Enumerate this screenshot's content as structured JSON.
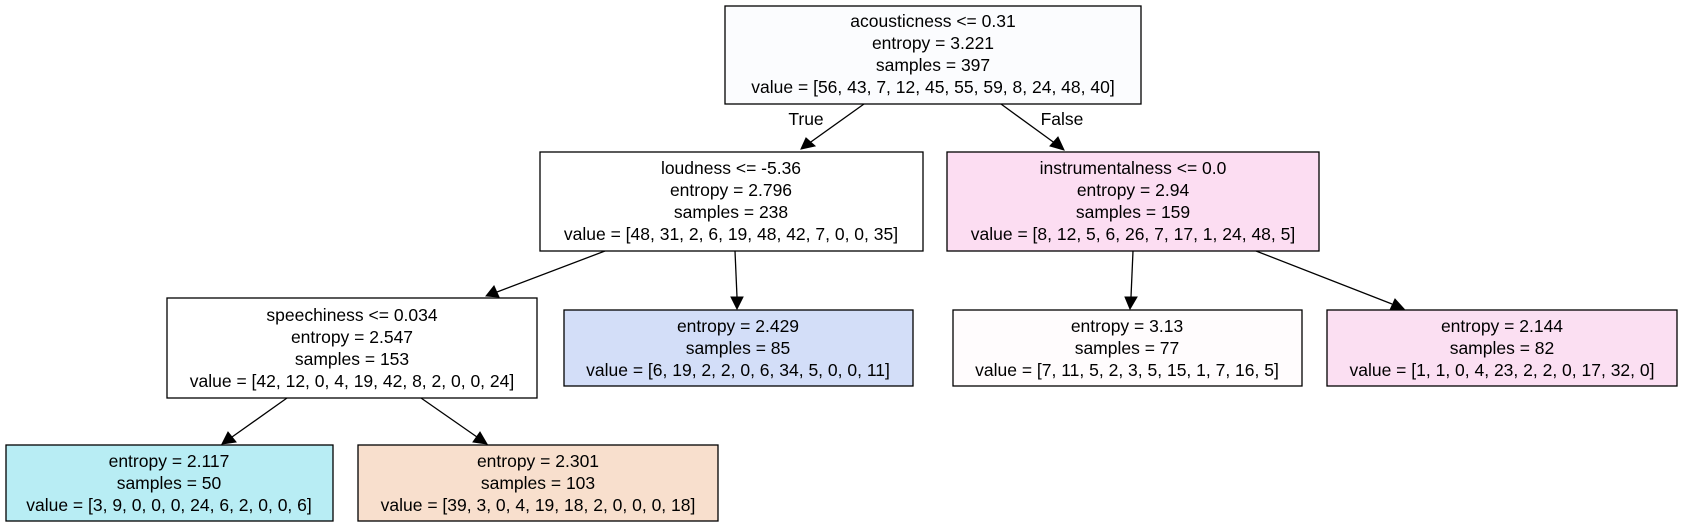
{
  "nodes": {
    "root": {
      "split": "acousticness <= 0.31",
      "entropy": "entropy = 3.221",
      "samples": "samples = 397",
      "value": "value = [56, 43, 7, 12, 45, 55, 59, 8, 24, 48, 40]",
      "fill": "#fbfcfe"
    },
    "loudness": {
      "split": "loudness <= -5.36",
      "entropy": "entropy = 2.796",
      "samples": "samples = 238",
      "value": "value = [48, 31, 2, 6, 19, 48, 42, 7, 0, 0, 35]",
      "fill": "#ffffff"
    },
    "instrumentalness": {
      "split": "instrumentalness <= 0.0",
      "entropy": "entropy = 2.94",
      "samples": "samples = 159",
      "value": "value = [8, 12, 5, 6, 26, 7, 17, 1, 24, 48, 5]",
      "fill": "#fcddf2"
    },
    "speechiness": {
      "split": "speechiness <= 0.034",
      "entropy": "entropy = 2.547",
      "samples": "samples = 153",
      "value": "value = [42, 12, 0, 4, 19, 42, 8, 2, 0, 0, 24]",
      "fill": "#ffffff"
    },
    "leaf_85": {
      "entropy": "entropy = 2.429",
      "samples": "samples = 85",
      "value": "value = [6, 19, 2, 2, 0, 6, 34, 5, 0, 0, 11]",
      "fill": "#d3def8"
    },
    "leaf_77": {
      "entropy": "entropy = 3.13",
      "samples": "samples = 77",
      "value": "value = [7, 11, 5, 2, 3, 5, 15, 1, 7, 16, 5]",
      "fill": "#fffcfd"
    },
    "leaf_82": {
      "entropy": "entropy = 2.144",
      "samples": "samples = 82",
      "value": "value = [1, 1, 0, 4, 23, 2, 2, 0, 17, 32, 0]",
      "fill": "#fbdff2"
    },
    "leaf_50": {
      "entropy": "entropy = 2.117",
      "samples": "samples = 50",
      "value": "value = [3, 9, 0, 0, 0, 24, 6, 2, 0, 0, 6]",
      "fill": "#b8edf4"
    },
    "leaf_103": {
      "entropy": "entropy = 2.301",
      "samples": "samples = 103",
      "value": "value = [39, 3, 0, 4, 19, 18, 2, 0, 0, 0, 18]",
      "fill": "#f8dfcd"
    }
  },
  "edge_labels": {
    "true_label": "True",
    "false_label": "False"
  }
}
